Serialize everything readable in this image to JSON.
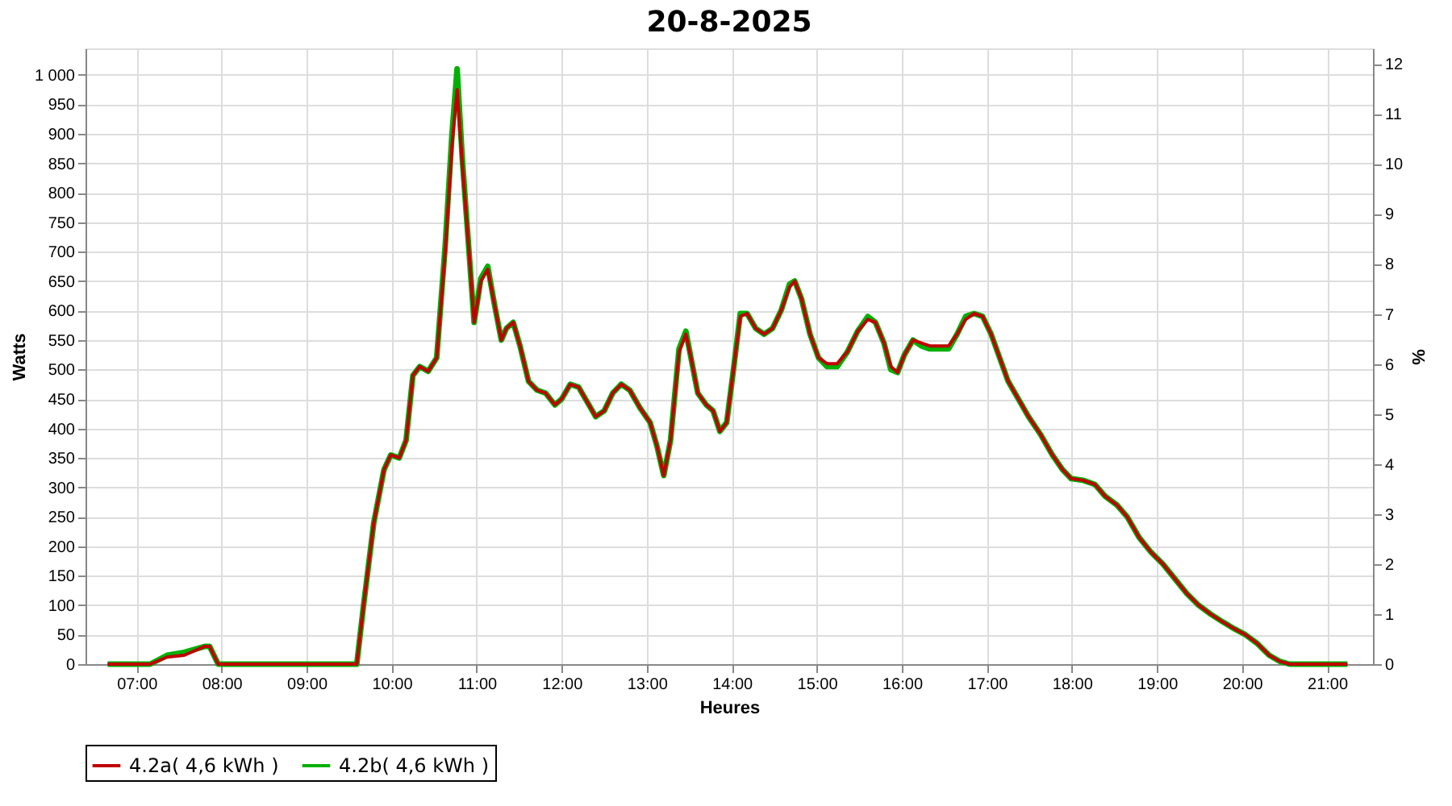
{
  "chart_data": {
    "type": "line",
    "title": "20-8-2025",
    "xlabel": "Heures",
    "ylabel": "Watts",
    "y2label": "%",
    "xlim": [
      6.4,
      21.54
    ],
    "ylim": [
      0,
      1045
    ],
    "y2lim": [
      0,
      12.31
    ],
    "xticks": [
      {
        "value": 7,
        "label": "07:00"
      },
      {
        "value": 8,
        "label": "08:00"
      },
      {
        "value": 9,
        "label": "09:00"
      },
      {
        "value": 10,
        "label": "10:00"
      },
      {
        "value": 11,
        "label": "11:00"
      },
      {
        "value": 12,
        "label": "12:00"
      },
      {
        "value": 13,
        "label": "13:00"
      },
      {
        "value": 14,
        "label": "14:00"
      },
      {
        "value": 15,
        "label": "15:00"
      },
      {
        "value": 16,
        "label": "16:00"
      },
      {
        "value": 17,
        "label": "17:00"
      },
      {
        "value": 18,
        "label": "18:00"
      },
      {
        "value": 19,
        "label": "19:00"
      },
      {
        "value": 20,
        "label": "20:00"
      },
      {
        "value": 21,
        "label": "21:00"
      }
    ],
    "yticks": [
      0,
      50,
      100,
      150,
      200,
      250,
      300,
      350,
      400,
      450,
      500,
      550,
      600,
      650,
      700,
      750,
      800,
      850,
      900,
      950,
      {
        "value": 1000,
        "label": "1 000"
      }
    ],
    "y2ticks": [
      0,
      1,
      2,
      3,
      4,
      5,
      6,
      7,
      8,
      9,
      10,
      11,
      12
    ],
    "grid": true,
    "legend": "bottom",
    "marker": "none",
    "line_style": "solid",
    "x": [
      6.66,
      7.16,
      7.36,
      7.56,
      7.8,
      7.86,
      7.96,
      9.59,
      9.67,
      9.79,
      9.91,
      9.99,
      10.09,
      10.17,
      10.25,
      10.33,
      10.43,
      10.53,
      10.63,
      10.71,
      10.77,
      10.83,
      10.91,
      10.97,
      11.05,
      11.13,
      11.21,
      11.29,
      11.35,
      11.43,
      11.51,
      11.61,
      11.71,
      11.81,
      11.92,
      12.0,
      12.1,
      12.2,
      12.3,
      12.4,
      12.5,
      12.6,
      12.7,
      12.8,
      12.92,
      13.04,
      13.12,
      13.2,
      13.28,
      13.38,
      13.46,
      13.52,
      13.6,
      13.7,
      13.78,
      13.86,
      13.94,
      14.02,
      14.1,
      14.18,
      14.28,
      14.38,
      14.48,
      14.58,
      14.68,
      14.74,
      14.82,
      14.92,
      15.02,
      15.12,
      15.24,
      15.36,
      15.48,
      15.6,
      15.69,
      15.79,
      15.87,
      15.95,
      16.03,
      16.13,
      16.23,
      16.33,
      16.43,
      16.55,
      16.65,
      16.75,
      16.85,
      16.95,
      17.05,
      17.15,
      17.25,
      17.37,
      17.49,
      17.63,
      17.77,
      17.89,
      17.99,
      18.13,
      18.27,
      18.39,
      18.53,
      18.65,
      18.79,
      18.93,
      19.07,
      19.21,
      19.35,
      19.49,
      19.63,
      19.77,
      19.91,
      20.04,
      20.18,
      20.32,
      20.44,
      20.56,
      21.24
    ],
    "series": [
      {
        "name": "4.2a( 4,6 kWh )",
        "color": "#c00000",
        "values": [
          0,
          0,
          12,
          15,
          30,
          30,
          0,
          0,
          100,
          240,
          330,
          355,
          350,
          380,
          490,
          505,
          497,
          520,
          700,
          880,
          975,
          850,
          700,
          580,
          650,
          670,
          610,
          550,
          570,
          580,
          540,
          480,
          465,
          460,
          440,
          450,
          475,
          470,
          445,
          420,
          430,
          460,
          475,
          465,
          435,
          410,
          370,
          320,
          380,
          530,
          560,
          520,
          460,
          440,
          430,
          395,
          410,
          500,
          590,
          595,
          570,
          560,
          570,
          600,
          640,
          650,
          620,
          560,
          520,
          510,
          510,
          530,
          565,
          585,
          580,
          545,
          505,
          495,
          525,
          550,
          545,
          540,
          540,
          540,
          560,
          585,
          595,
          590,
          560,
          520,
          480,
          450,
          420,
          390,
          355,
          330,
          315,
          312,
          305,
          285,
          270,
          250,
          215,
          190,
          170,
          145,
          120,
          100,
          85,
          72,
          60,
          50,
          35,
          15,
          5,
          0,
          0
        ]
      },
      {
        "name": "4.2b( 4,6 kWh )",
        "color": "#00b000",
        "values": [
          0,
          0,
          15,
          20,
          30,
          30,
          0,
          0,
          100,
          240,
          330,
          355,
          350,
          380,
          490,
          505,
          497,
          520,
          710,
          900,
          1010,
          860,
          700,
          580,
          655,
          675,
          610,
          550,
          570,
          580,
          540,
          480,
          465,
          460,
          440,
          450,
          475,
          470,
          445,
          420,
          430,
          460,
          475,
          465,
          435,
          410,
          370,
          320,
          380,
          535,
          565,
          520,
          460,
          440,
          430,
          395,
          410,
          500,
          595,
          595,
          570,
          560,
          570,
          600,
          645,
          650,
          620,
          560,
          520,
          505,
          505,
          530,
          565,
          590,
          580,
          545,
          500,
          495,
          525,
          550,
          540,
          535,
          535,
          535,
          560,
          590,
          595,
          590,
          560,
          520,
          480,
          450,
          420,
          390,
          355,
          330,
          315,
          312,
          305,
          285,
          270,
          250,
          215,
          190,
          170,
          145,
          120,
          100,
          85,
          72,
          60,
          50,
          35,
          15,
          5,
          0,
          0
        ]
      }
    ]
  }
}
